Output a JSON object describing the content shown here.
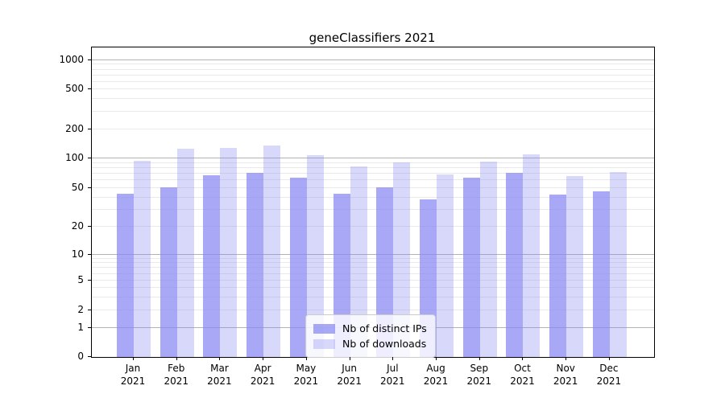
{
  "chart_data": {
    "type": "bar",
    "title": "geneClassifiers 2021",
    "categories": [
      "Jan",
      "Feb",
      "Mar",
      "Apr",
      "May",
      "Jun",
      "Jul",
      "Aug",
      "Sep",
      "Oct",
      "Nov",
      "Dec"
    ],
    "year": "2021",
    "series": [
      {
        "name": "Nb of distinct IPs",
        "values": [
          44,
          51,
          68,
          72,
          64,
          44,
          51,
          38,
          64,
          71,
          43,
          46
        ],
        "base_color": "#8686f4",
        "alpha": 0.72
      },
      {
        "name": "Nb of downloads",
        "values": [
          95,
          125,
          128,
          135,
          109,
          83,
          92,
          69,
          93,
          111,
          66,
          73
        ],
        "base_color": "#8686f4",
        "alpha": 0.32
      }
    ],
    "xlabel": "",
    "ylabel": "",
    "yscale": "symlog",
    "yticks": [
      0,
      1,
      2,
      5,
      10,
      20,
      50,
      100,
      200,
      500,
      1000
    ],
    "ylim": [
      0,
      1300
    ],
    "grid": "on",
    "major_grid_values": [
      1,
      10,
      100,
      1000
    ],
    "legend_position": "lower center"
  },
  "colors": {
    "major_grid": "#b3b3b3",
    "minor_grid": "#e9e9e9",
    "axis": "#000000",
    "legend_border": "#cccccc"
  }
}
